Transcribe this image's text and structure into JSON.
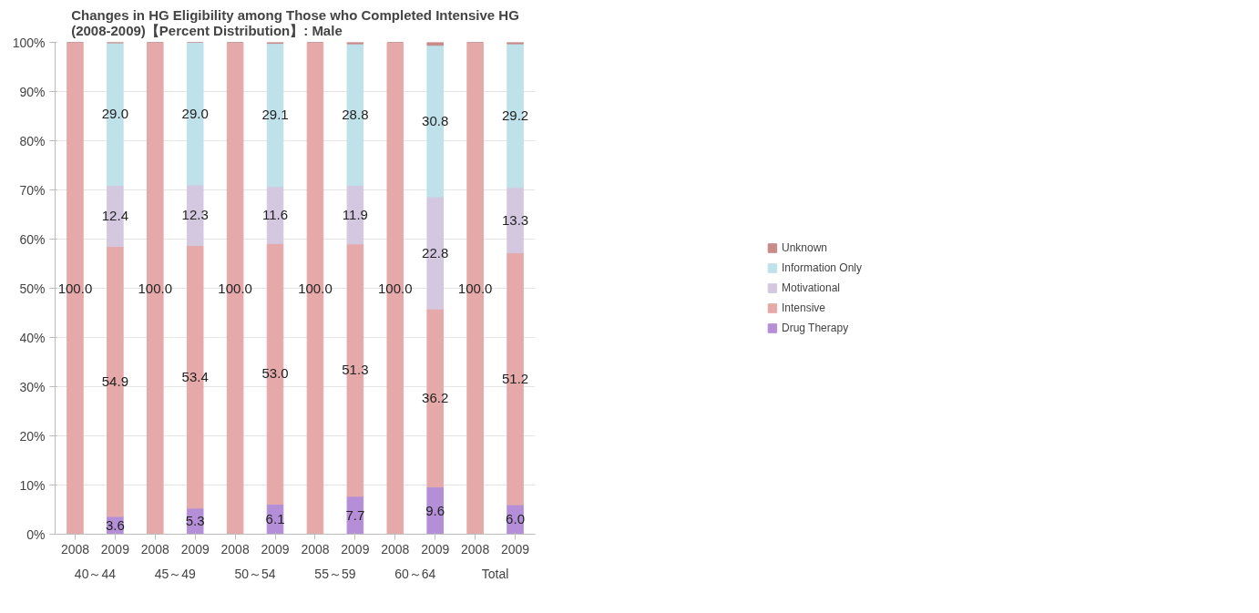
{
  "chart_data": {
    "type": "bar",
    "stacked": true,
    "title": "Changes in HG Eligibility among Those who Completed Intensive HG\n(2008-2009)【Percent Distribution】: Male",
    "categories": [
      "2008",
      "2009",
      "2008",
      "2009",
      "2008",
      "2009",
      "2008",
      "2009",
      "2008",
      "2009",
      "2008",
      "2009"
    ],
    "annotations": [
      "40～44",
      "45～49",
      "50～54",
      "55～59",
      "60～64",
      "Total"
    ],
    "series": [
      {
        "name": "Drug Therapy",
        "color": "#b48fd8",
        "values": [
          0,
          3.6,
          0,
          5.3,
          0,
          6.1,
          0,
          7.7,
          0,
          9.6,
          0,
          6.0
        ],
        "value_labels": [
          null,
          "3.6",
          null,
          "5.3",
          null,
          "6.1",
          null,
          "7.7",
          null,
          "9.6",
          null,
          "6.0"
        ]
      },
      {
        "name": "Intensive",
        "color": "#e6a9a9",
        "values": [
          100,
          54.9,
          100,
          53.4,
          100,
          53.0,
          100,
          51.3,
          100,
          36.2,
          100,
          51.2
        ],
        "value_labels": [
          "100.0",
          "54.9",
          "100.0",
          "53.4",
          "100.0",
          "53.0",
          "100.0",
          "51.3",
          "100.0",
          "36.2",
          "100.0",
          "51.2"
        ]
      },
      {
        "name": "Motivational",
        "color": "#d3c8e0",
        "values": [
          0,
          12.4,
          0,
          12.3,
          0,
          11.6,
          0,
          11.9,
          0,
          22.8,
          0,
          13.3
        ],
        "value_labels": [
          null,
          "12.4",
          null,
          "12.3",
          null,
          "11.6",
          null,
          "11.9",
          null,
          "22.8",
          null,
          "13.3"
        ]
      },
      {
        "name": "Information Only",
        "color": "#bfe1ea",
        "values": [
          0,
          29.0,
          0,
          29.0,
          0,
          29.1,
          0,
          28.8,
          0,
          30.8,
          0,
          29.2
        ],
        "value_labels": [
          null,
          "29.0",
          null,
          "29.0",
          null,
          "29.1",
          null,
          "28.8",
          null,
          "30.8",
          null,
          "29.2"
        ]
      },
      {
        "name": "Unknown",
        "color": "#c98a8a",
        "values": [
          0,
          0.1,
          0,
          0,
          0,
          0.2,
          0,
          0.3,
          0,
          0.6,
          0,
          0.3
        ]
      }
    ],
    "ylim": [
      0,
      100
    ],
    "yticks": [
      {
        "value": 0,
        "label": "0%"
      },
      {
        "value": 10,
        "label": "10%"
      },
      {
        "value": 20,
        "label": "20%"
      },
      {
        "value": 30,
        "label": "30%"
      },
      {
        "value": 40,
        "label": "40%"
      },
      {
        "value": 50,
        "label": "50%"
      },
      {
        "value": 60,
        "label": "60%"
      },
      {
        "value": 70,
        "label": "70%"
      },
      {
        "value": 80,
        "label": "80%"
      },
      {
        "value": 90,
        "label": "90%"
      },
      {
        "value": 100,
        "label": "100%"
      }
    ],
    "grid": "y",
    "legend": "right"
  }
}
